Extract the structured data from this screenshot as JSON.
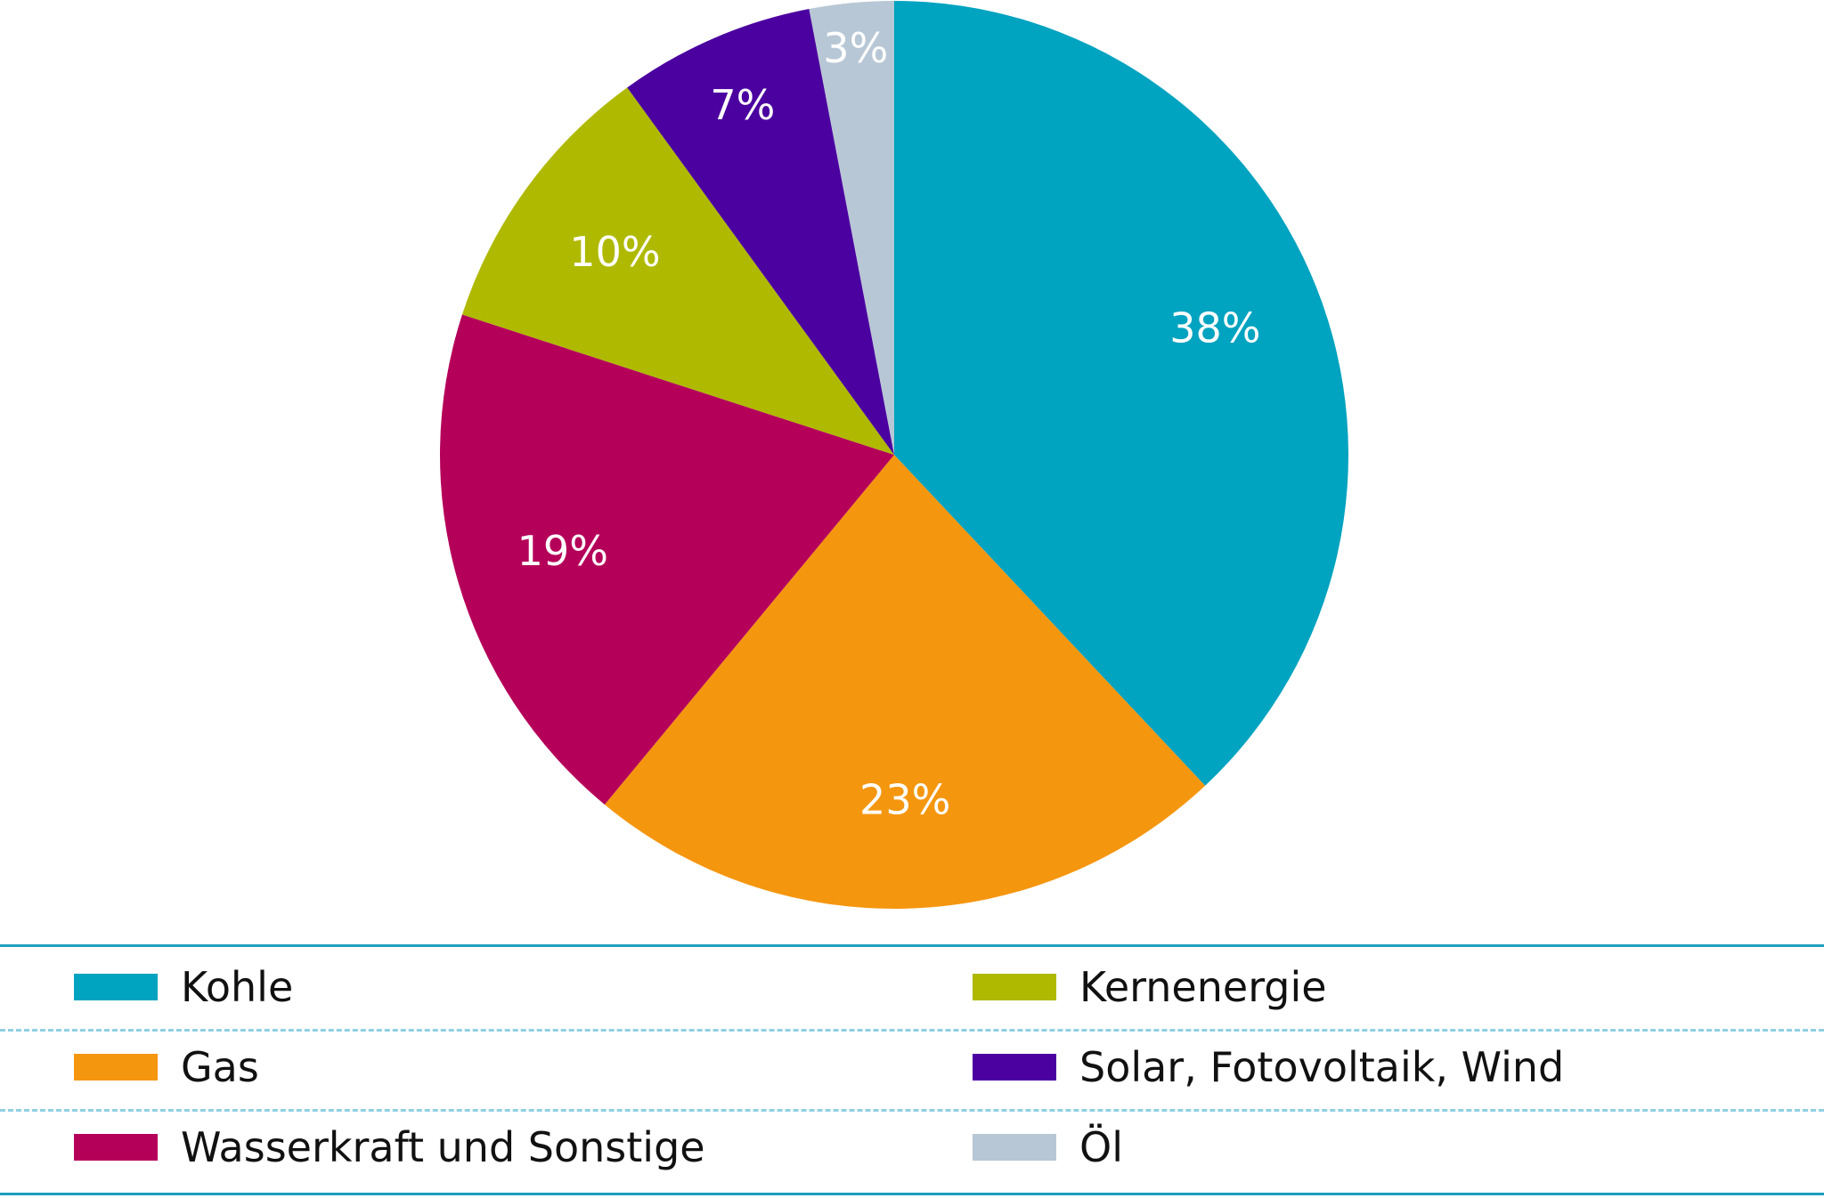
{
  "chart_data": {
    "type": "pie",
    "slices": [
      {
        "name": "Kohle",
        "value": 38,
        "label": "38%",
        "color": "#00a3c0"
      },
      {
        "name": "Gas",
        "value": 23,
        "label": "23%",
        "color": "#f5960f"
      },
      {
        "name": "Wasserkraft und Sonstige",
        "value": 19,
        "label": "19%",
        "color": "#b5005a"
      },
      {
        "name": "Kernenergie",
        "value": 10,
        "label": "10%",
        "color": "#afb900"
      },
      {
        "name": "Solar, Fotovoltaik, Wind",
        "value": 7,
        "label": "7%",
        "color": "#4b00a0"
      },
      {
        "name": "Öl",
        "value": 3,
        "label": "3%",
        "color": "#b8c7d5"
      }
    ],
    "start_angle": "12 o'clock",
    "direction": "clockwise",
    "legend_position": "bottom",
    "legend_columns": 2
  },
  "legend": {
    "items": [
      {
        "label": "Kohle",
        "color": "#00a3c0"
      },
      {
        "label": "Gas",
        "color": "#f5960f"
      },
      {
        "label": "Wasserkraft und Sonstige",
        "color": "#b5005a"
      },
      {
        "label": "Kernenergie",
        "color": "#afb900"
      },
      {
        "label": "Solar, Fotovoltaik, Wind",
        "color": "#4b00a0"
      },
      {
        "label": "Öl",
        "color": "#b8c7d5"
      }
    ]
  }
}
